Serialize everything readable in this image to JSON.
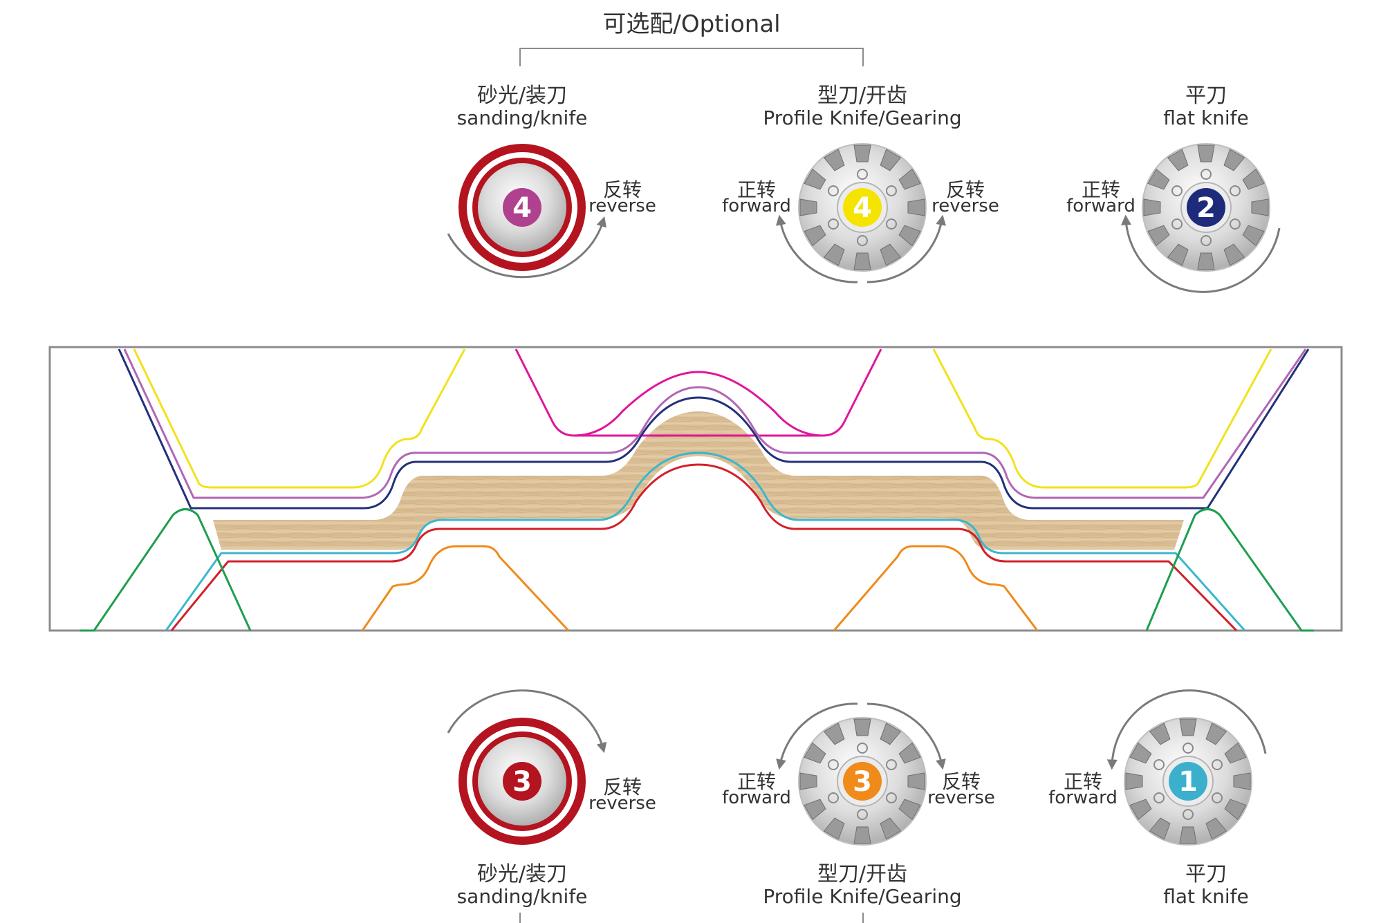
{
  "optional_label": "可选配/Optional",
  "heads": {
    "top_sanding": {
      "cn": "砂光/装刀",
      "en": "sanding/knife",
      "number": "4",
      "number_color": "#b0418f",
      "direction_right_cn": "反转",
      "direction_right_en": "reverse"
    },
    "top_profile": {
      "cn": "型刀/开齿",
      "en": "Profile Knife/Gearing",
      "number": "4",
      "number_color": "#f5e400",
      "direction_left_cn": "正转",
      "direction_left_en": "forward",
      "direction_right_cn": "反转",
      "direction_right_en": "reverse"
    },
    "top_flat": {
      "cn": "平刀",
      "en": "flat knife",
      "number": "2",
      "number_color": "#1e2a7a",
      "direction_left_cn": "正转",
      "direction_left_en": "forward"
    },
    "bottom_sanding": {
      "cn": "砂光/装刀",
      "en": "sanding/knife",
      "number": "3",
      "number_color": "#b3141f",
      "direction_right_cn": "反转",
      "direction_right_en": "reverse"
    },
    "bottom_profile": {
      "cn": "型刀/开齿",
      "en": "Profile Knife/Gearing",
      "number": "3",
      "number_color": "#f08a1a",
      "direction_left_cn": "正转",
      "direction_left_en": "forward",
      "direction_right_cn": "反转",
      "direction_right_en": "reverse"
    },
    "bottom_flat": {
      "cn": "平刀",
      "en": "flat knife",
      "number": "1",
      "number_color": "#3ab0cc",
      "direction_left_cn": "正转",
      "direction_left_en": "forward"
    }
  },
  "colors": {
    "sanding_ring": "#b3141f",
    "arrow": "#7a7a7a",
    "frame": "#8c8c8c",
    "profile_pink": "#e0169a",
    "profile_purple": "#b166b4",
    "profile_navy": "#23307a",
    "profile_yellow": "#f2e21a",
    "profile_green": "#1e9e4f",
    "profile_cyan": "#39b7cf",
    "profile_red": "#d3202a",
    "profile_orange": "#f08a1a",
    "wood": "#dcc29c"
  }
}
